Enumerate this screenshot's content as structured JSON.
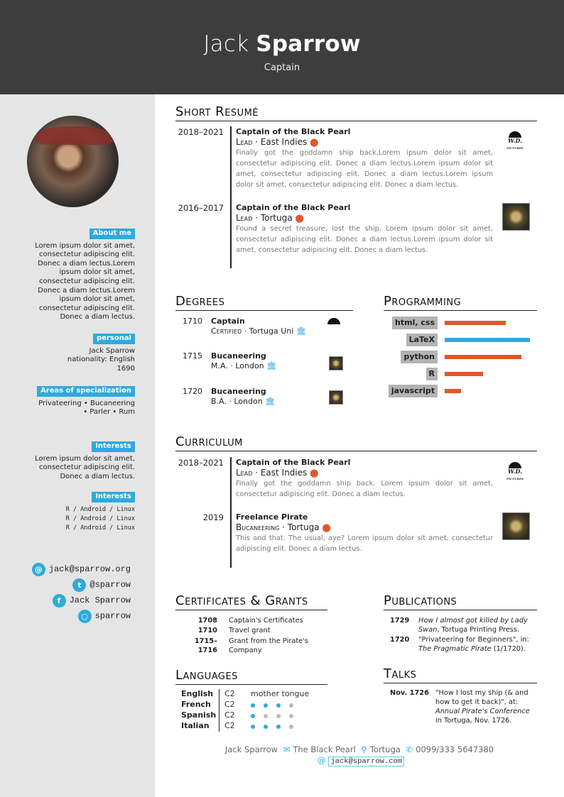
{
  "header": {
    "first_name": "Jack",
    "last_name": "Sparrow",
    "subtitle": "Captain"
  },
  "colors": {
    "accent": "#2eaadc",
    "orange": "#e0572a",
    "header_bg": "#3d3d3d",
    "sidebar_bg": "#e5e5e5"
  },
  "sidebar": {
    "about": {
      "label": "About me",
      "text": "Lorem ipsum dolor sit amet, consectetur adipiscing elit. Donec a diam lectus.Lorem ipsum dolor sit amet, consectetur adipiscing elit. Donec a diam lectus.Lorem ipsum dolor sit amet, consectetur adipiscing elit. Donec a diam lectus."
    },
    "personal": {
      "label": "personal",
      "lines": [
        "Jack Sparrow",
        "nationality: English",
        "1690"
      ]
    },
    "areas": {
      "label": "Areas of specialization",
      "line1": "Privateering • Bucaneering",
      "line2": "• Parler • Rum"
    },
    "interests1": {
      "label": "Interests",
      "text": "Lorem ipsum dolor sit amet, consectetur adipiscing elit. Donec a diam lectus."
    },
    "interests2": {
      "label": "Interests",
      "lines": [
        "R / Android / Linux",
        "R / Android / Linux",
        "R / Android / Linux"
      ]
    },
    "social": [
      {
        "icon": "at-icon",
        "glyph": "@",
        "text": "jack@sparrow.org"
      },
      {
        "icon": "twitter-icon",
        "glyph": "t",
        "text": "@sparrow"
      },
      {
        "icon": "facebook-icon",
        "glyph": "f",
        "text": "Jack Sparrow"
      },
      {
        "icon": "github-icon",
        "glyph": "○",
        "text": "sparrow"
      }
    ]
  },
  "resume": {
    "title": "Short Resumé",
    "entries": [
      {
        "date": "2018–2021",
        "title": "Captain of the Black Pearl",
        "role": "Lead",
        "place": "East Indies",
        "desc": "Finally got the goddamn ship back.Lorem ipsum dolor sit amet, consectetur adipiscing elit. Donec a diam lectus.Lorem ipsum dolor sit amet, consectetur adipiscing elit. Donec a diam lectus.Lorem ipsum dolor sit amet, consectetur adipiscing elit. Donec a diam lectus.",
        "logo": "Walt Disney Pictures"
      },
      {
        "date": "2016–2017",
        "title": "Captain of the Black Pearl",
        "role": "Lead",
        "place": "Tortuga",
        "desc": "Found a secret treasure, lost the ship. Lorem ipsum dolor sit amet, consectetur adipiscing elit. Donec a diam lectus.Lorem ipsum dolor sit amet, consectetur adipiscing elit. Donec a diam lectus."
      }
    ]
  },
  "degrees": {
    "title": "Degrees",
    "entries": [
      {
        "year": "1710",
        "title": "Captain",
        "degree": "Certified",
        "place": "Tortuga Uni"
      },
      {
        "year": "1715",
        "title": "Bucaneering",
        "degree": "M.A.",
        "place": "London"
      },
      {
        "year": "1720",
        "title": "Bucaneering",
        "degree": "B.A.",
        "place": "London"
      }
    ]
  },
  "programming": {
    "title": "Programming",
    "skills": [
      {
        "name": "html, css",
        "level": 0.72,
        "color": "#e0572a"
      },
      {
        "name": "LaTeX",
        "level": 1.0,
        "color": "#2eaadc"
      },
      {
        "name": "python",
        "level": 0.9,
        "color": "#e0572a"
      },
      {
        "name": "R",
        "level": 0.45,
        "color": "#e0572a"
      },
      {
        "name": "javascript",
        "level": 0.19,
        "color": "#e0572a"
      }
    ]
  },
  "curriculum": {
    "title": "Curriculum",
    "entries": [
      {
        "date": "2018–2021",
        "title": "Captain of the Black Pearl",
        "role": "Lead",
        "place": "East Indies",
        "desc": "Finally got the goddamn ship back. Lorem ipsum dolor sit amet, consectetur adipiscing elit. Donec a diam lectus."
      },
      {
        "date": "2019",
        "title": "Freelance Pirate",
        "role": "Bucaneering",
        "place": "Tortuga",
        "desc": "This and that. The usual, aye? Lorem ipsum dolor sit amet, consectetur adipiscing elit. Donec a diam lectus."
      }
    ]
  },
  "certificates": {
    "title": "Certificates & Grants",
    "rows": [
      {
        "year": "1708",
        "text": "Captain's Certificates"
      },
      {
        "year": "1710",
        "text": "Travel grant"
      },
      {
        "year": "1715–1716",
        "text": "Grant from the Pirate's Company"
      }
    ]
  },
  "publications": {
    "title": "Publications",
    "rows": [
      {
        "year": "1729",
        "italic": "How I almost got killed by Lady Swan",
        "rest": ", Tortuga Printing Press."
      },
      {
        "year": "1720",
        "pre": "\"Privateering for Beginners\", in: ",
        "italic": "The Pragmatic Pirate",
        "rest": " (1/1720)."
      }
    ]
  },
  "languages": {
    "title": "Languages",
    "rows": [
      {
        "name": "English",
        "level": "C2",
        "note": "mother tongue"
      },
      {
        "name": "French",
        "level": "C2",
        "dots": 3
      },
      {
        "name": "Spanish",
        "level": "C2",
        "dots": 1
      },
      {
        "name": "Italian",
        "level": "C2",
        "dots": 3
      }
    ]
  },
  "talks": {
    "title": "Talks",
    "rows": [
      {
        "date": "Nov. 1726",
        "pre": "\"How I lost my ship (& and how to get it back)\", at: ",
        "italic": "Annual Pirate's Conference",
        "rest": " in Tortuga, Nov. 1726."
      }
    ]
  },
  "footer": {
    "name": "Jack Sparrow",
    "address": "The Black Pearl",
    "city": "Tortuga",
    "phone": "0099/333 5647380",
    "email": "jack@sparrow.com"
  }
}
